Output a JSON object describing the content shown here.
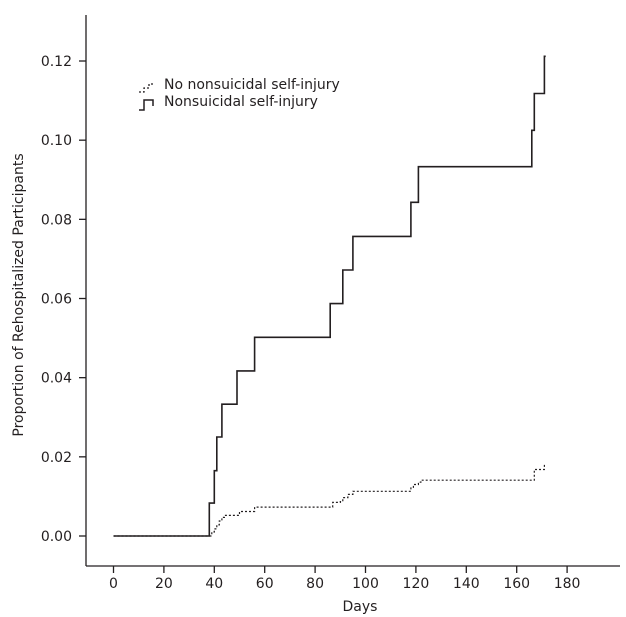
{
  "chart_data": {
    "type": "line",
    "subtype": "step",
    "title": "",
    "xlabel": "Days",
    "ylabel": "Proportion of Rehospitalized Participants",
    "xlim": [
      -7,
      185
    ],
    "ylim": [
      -0.007,
      0.132
    ],
    "xticks": [
      0,
      20,
      40,
      60,
      80,
      100,
      120,
      140,
      160,
      180
    ],
    "yticks": [
      0.0,
      0.02,
      0.04,
      0.06,
      0.08,
      0.1,
      0.12
    ],
    "ytick_labels": [
      "0.00",
      "0.02",
      "0.04",
      "0.06",
      "0.08",
      "0.10",
      "0.12"
    ],
    "grid": false,
    "legend_position": "upper-left",
    "series": [
      {
        "name": "No nonsuicidal self-injury",
        "style": "dotted",
        "color": "#231f20",
        "x": [
          0,
          37,
          39,
          40,
          41,
          42,
          43,
          44,
          48,
          50,
          56,
          86,
          87,
          90,
          91,
          93,
          95,
          118,
          119,
          121,
          122,
          166,
          167,
          171,
          172
        ],
        "y": [
          0.0,
          0.0,
          0.001,
          0.0018,
          0.0028,
          0.0038,
          0.0047,
          0.0052,
          0.0052,
          0.0062,
          0.0073,
          0.0073,
          0.0085,
          0.0087,
          0.0097,
          0.0105,
          0.0113,
          0.0123,
          0.013,
          0.0136,
          0.0141,
          0.0141,
          0.0168,
          0.0178,
          0.0178
        ]
      },
      {
        "name": "Nonsuicidal self-injury",
        "style": "solid",
        "color": "#231f20",
        "x": [
          0,
          38,
          40,
          41,
          43,
          49,
          56,
          86,
          91,
          93,
          95,
          118,
          121,
          166,
          167,
          171,
          171.5
        ],
        "y": [
          0.0,
          0.0083,
          0.0165,
          0.025,
          0.0333,
          0.0417,
          0.0502,
          0.0587,
          0.0672,
          0.0672,
          0.0757,
          0.0843,
          0.0933,
          0.1025,
          0.1118,
          0.1212,
          0.1212
        ]
      }
    ]
  }
}
